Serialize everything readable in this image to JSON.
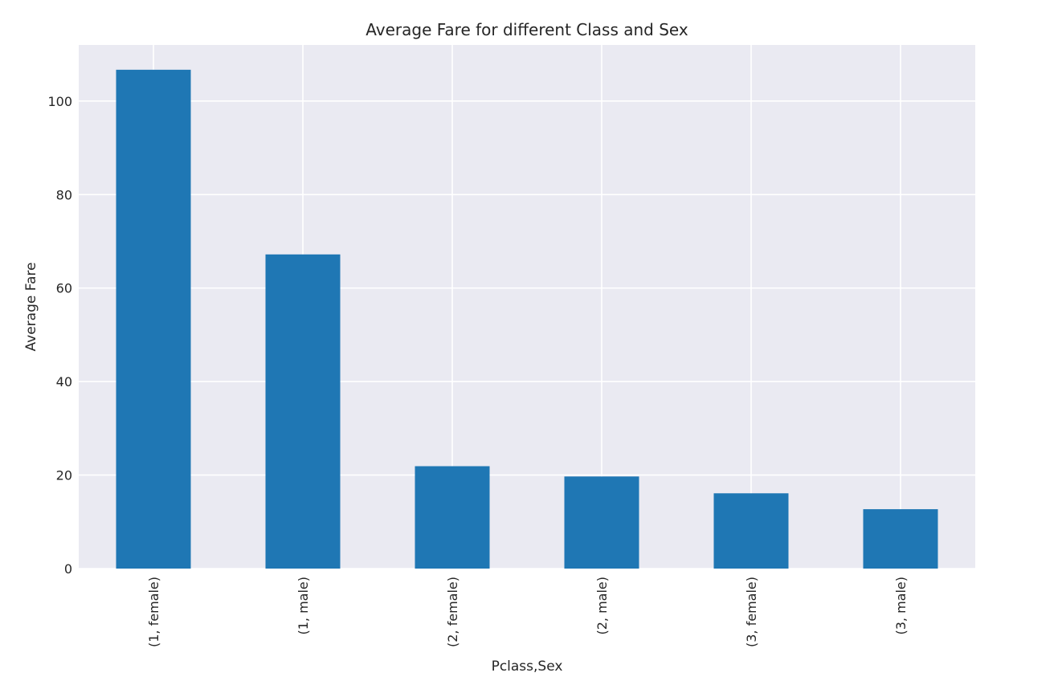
{
  "chart_data": {
    "type": "bar",
    "title": "Average Fare for different Class and Sex",
    "xlabel": "Pclass,Sex",
    "ylabel": "Average Fare",
    "categories": [
      "(1, female)",
      "(1, male)",
      "(2, female)",
      "(2, male)",
      "(3, female)",
      "(3, male)"
    ],
    "values": [
      106.7,
      67.2,
      21.9,
      19.7,
      16.1,
      12.7
    ],
    "ylim": [
      0,
      112
    ],
    "yticks": [
      "0",
      "20",
      "40",
      "60",
      "80",
      "100"
    ],
    "grid": true,
    "bar_color": "#1f77b4",
    "plot_background": "#eaeaf2",
    "grid_color": "#ffffff"
  }
}
